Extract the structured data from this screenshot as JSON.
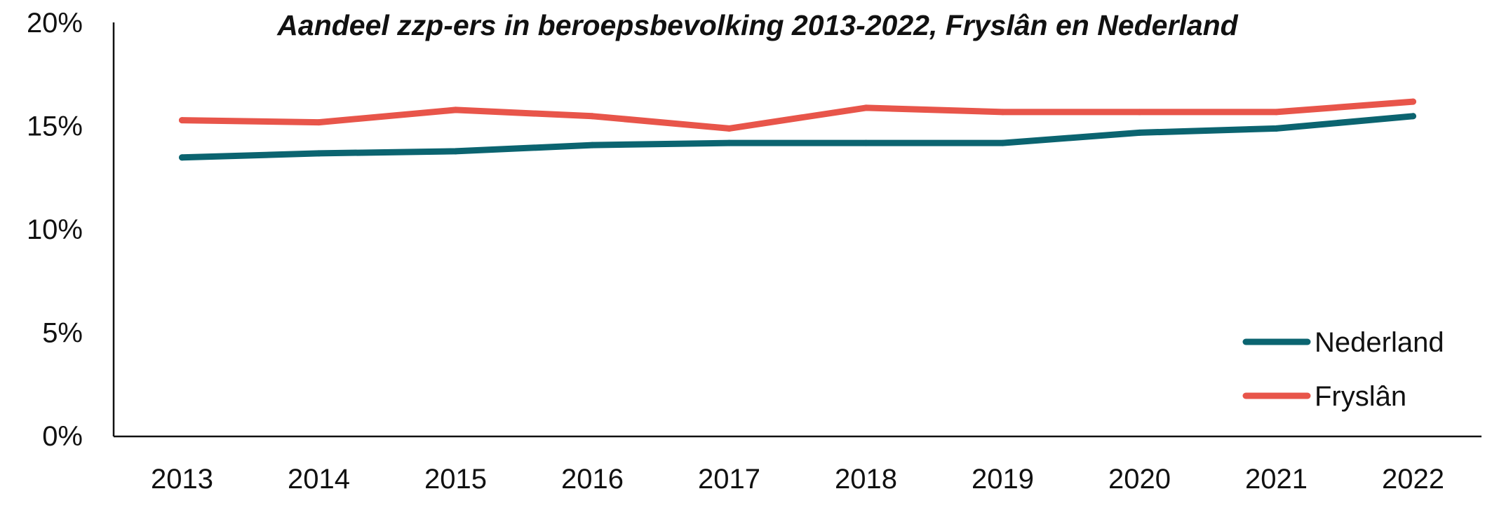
{
  "chart_data": {
    "type": "line",
    "title": "Aandeel zzp-ers in beroepsbevolking 2013-2022, Fryslân en Nederland",
    "categories": [
      "2013",
      "2014",
      "2015",
      "2016",
      "2017",
      "2018",
      "2019",
      "2020",
      "2021",
      "2022"
    ],
    "y_tick_labels": [
      "0%",
      "5%",
      "10%",
      "15%",
      "20%"
    ],
    "y_ticks": [
      0,
      5,
      10,
      15,
      20
    ],
    "ylim": [
      0,
      20
    ],
    "xlabel": "",
    "ylabel": "",
    "grid": false,
    "legend_position": "bottom-right",
    "series": [
      {
        "name": "Nederland",
        "color": "#0b6470",
        "values": [
          13.5,
          13.7,
          13.8,
          14.1,
          14.2,
          14.2,
          14.2,
          14.7,
          14.9,
          15.5
        ]
      },
      {
        "name": "Fryslân",
        "color": "#e8554a",
        "values": [
          15.3,
          15.2,
          15.8,
          15.5,
          14.9,
          15.9,
          15.7,
          15.7,
          15.7,
          16.2
        ]
      }
    ]
  }
}
